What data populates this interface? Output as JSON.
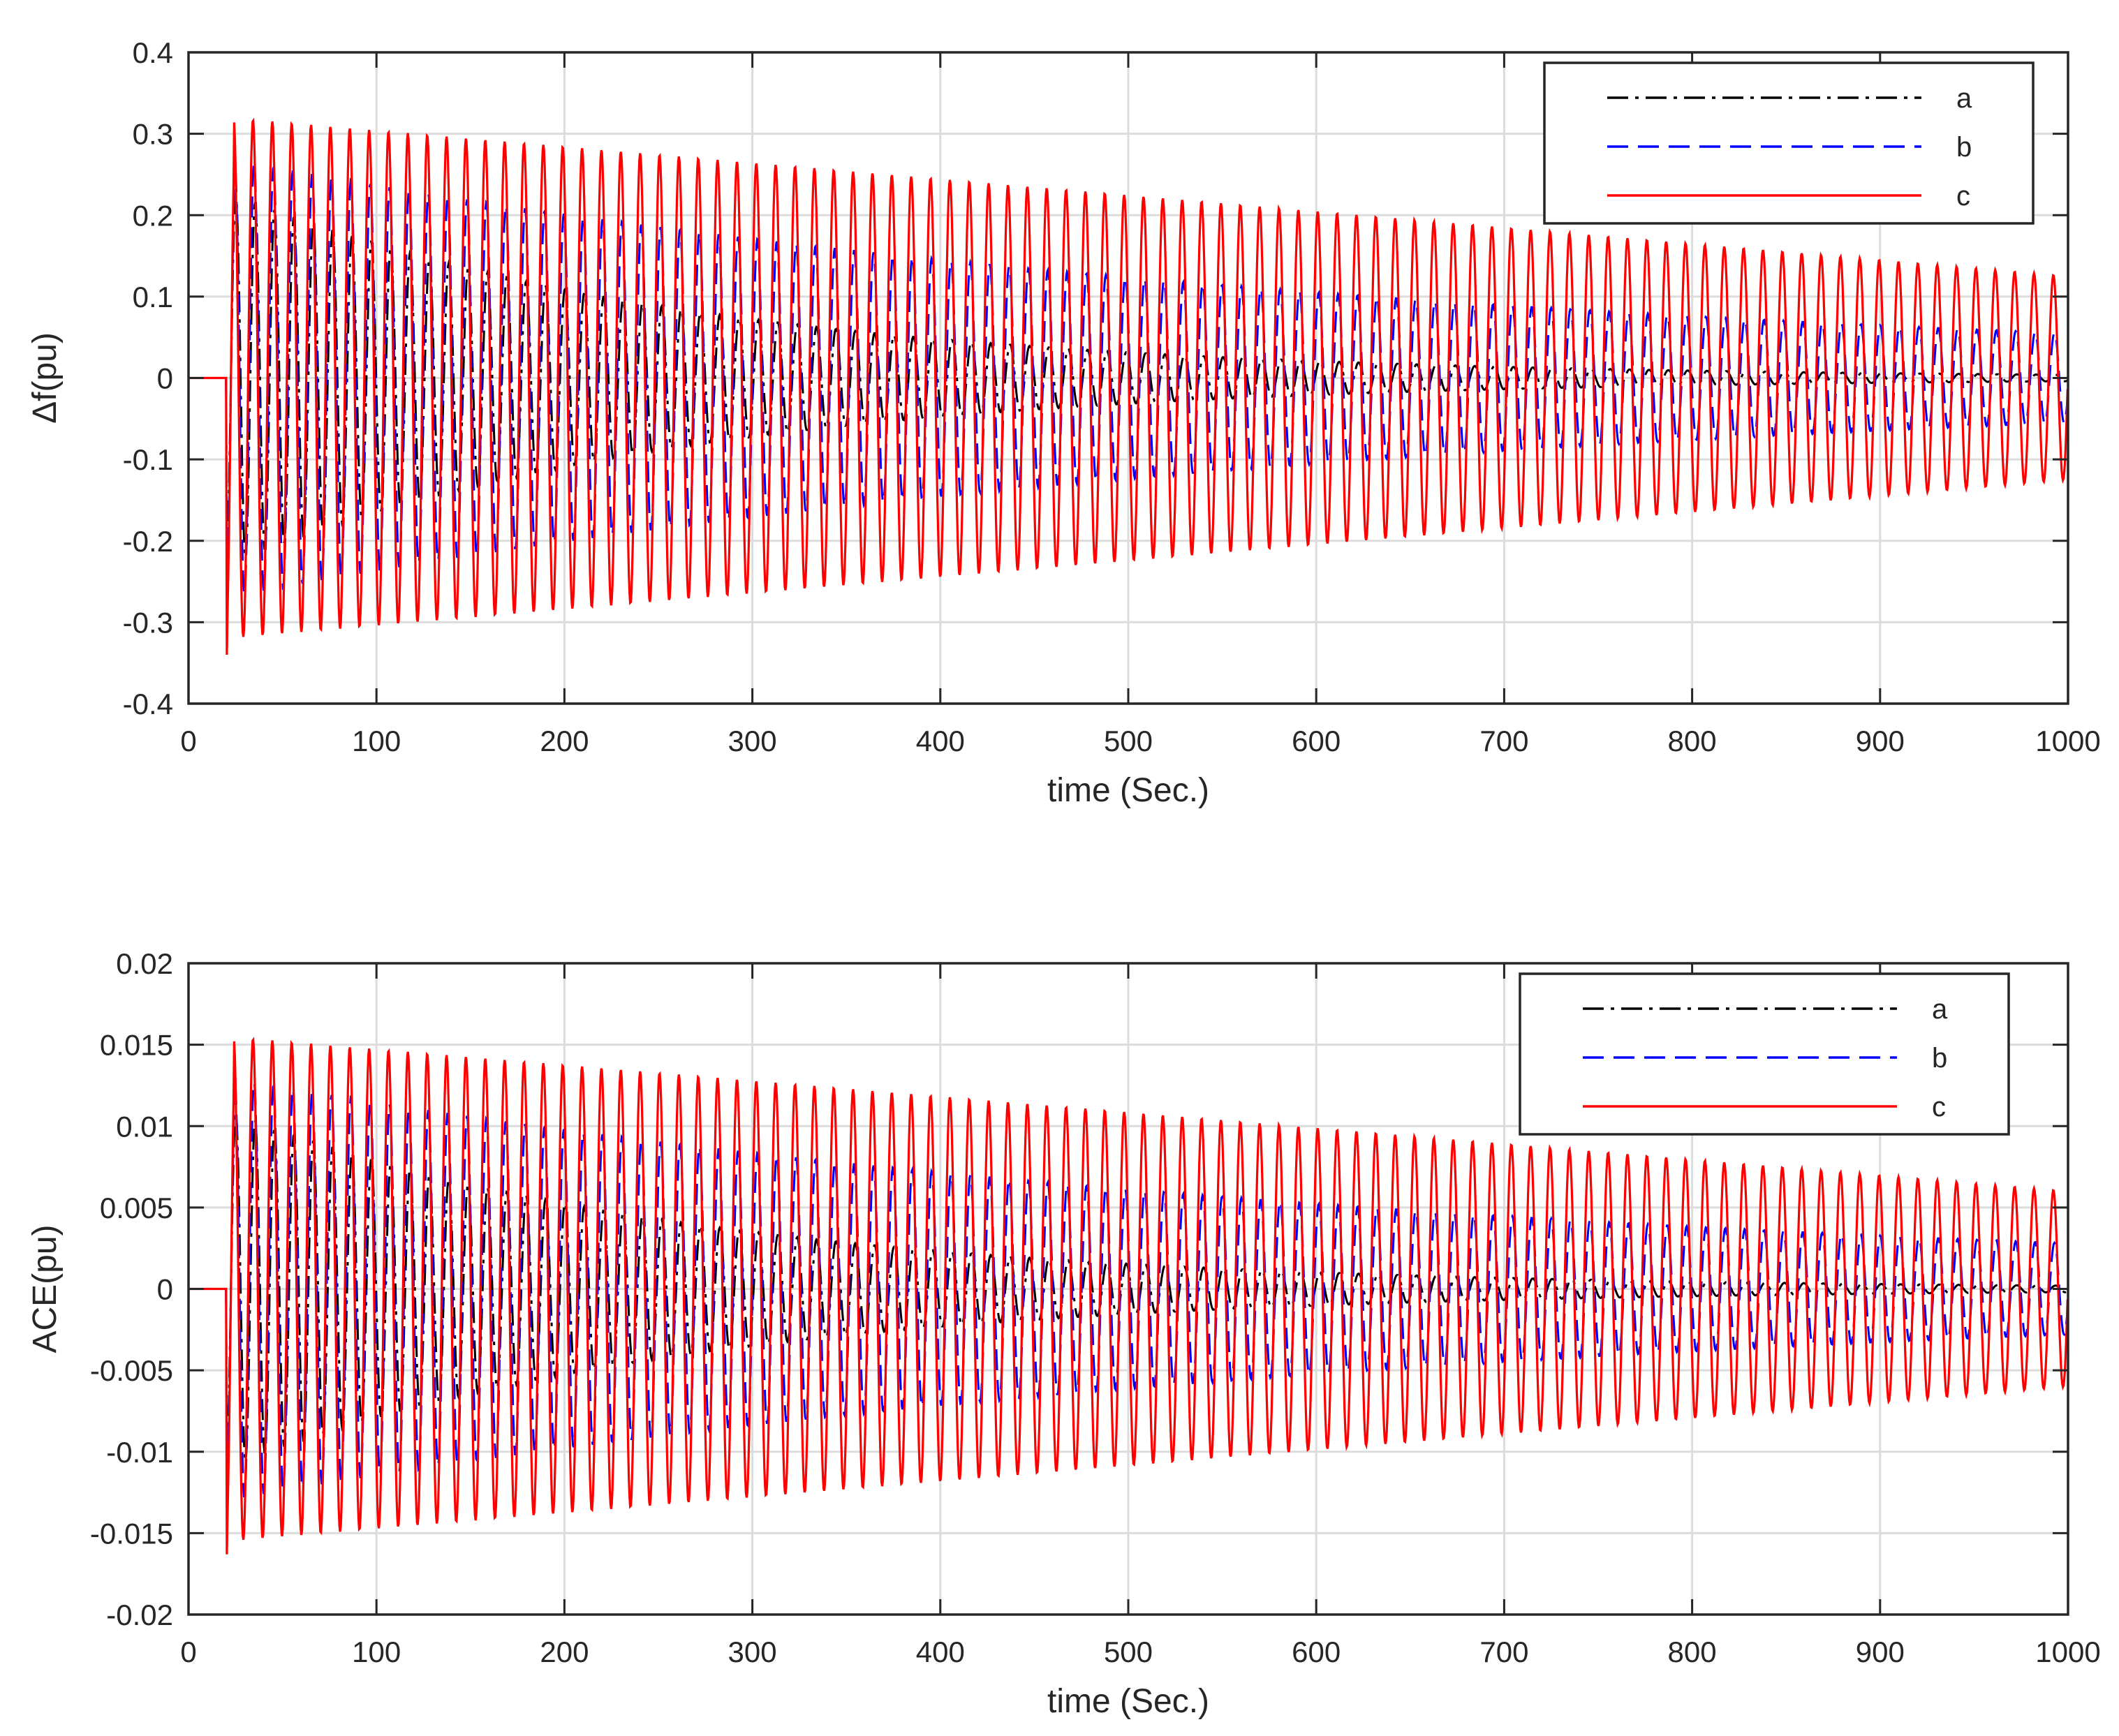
{
  "figure": {
    "legend_position": "top-right"
  },
  "chart_data": [
    {
      "type": "line",
      "title": "",
      "xlabel": "time (Sec.)",
      "ylabel": "Δf(pu)",
      "xlim": [
        0,
        1000
      ],
      "ylim": [
        -0.4,
        0.4
      ],
      "xticks": [
        0,
        100,
        200,
        300,
        400,
        500,
        600,
        700,
        800,
        900,
        1000
      ],
      "xtick_labels": [
        "0",
        "100",
        "200",
        "300",
        "400",
        "500",
        "600",
        "700",
        "800",
        "900",
        "1000"
      ],
      "yticks": [
        -0.4,
        -0.3,
        -0.2,
        -0.1,
        0,
        0.1,
        0.2,
        0.3,
        0.4
      ],
      "ytick_labels": [
        "-0.4",
        "-0.3",
        "-0.2",
        "-0.1",
        "0",
        "0.1",
        "0.2",
        "0.3",
        "0.4"
      ],
      "grid": true,
      "disturbance_time": 20,
      "oscillation_period": 10.3,
      "series": [
        {
          "name": "a",
          "color": "#000000",
          "style": "dashdot",
          "amplitude_start": 0.23,
          "amplitude_end": 0.004,
          "decay": "exponential",
          "initial_dip": -0.23
        },
        {
          "name": "b",
          "color": "#0000ff",
          "style": "dashed",
          "amplitude_start": 0.27,
          "amplitude_end": 0.055,
          "decay": "exponential",
          "initial_dip": -0.27
        },
        {
          "name": "c",
          "color": "#ff0000",
          "style": "solid",
          "amplitude_start": 0.32,
          "amplitude_end": 0.125,
          "decay": "linear",
          "initial_dip": -0.34
        }
      ]
    },
    {
      "type": "line",
      "title": "",
      "xlabel": "time (Sec.)",
      "ylabel": "ACE(pu)",
      "xlim": [
        0,
        1000
      ],
      "ylim": [
        -0.02,
        0.02
      ],
      "xticks": [
        0,
        100,
        200,
        300,
        400,
        500,
        600,
        700,
        800,
        900,
        1000
      ],
      "xtick_labels": [
        "0",
        "100",
        "200",
        "300",
        "400",
        "500",
        "600",
        "700",
        "800",
        "900",
        "1000"
      ],
      "yticks": [
        -0.02,
        -0.015,
        -0.01,
        -0.005,
        0,
        0.005,
        0.01,
        0.015,
        0.02
      ],
      "ytick_labels": [
        "-0.02",
        "-0.015",
        "-0.01",
        "-0.005",
        "0",
        "0.005",
        "0.01",
        "0.015",
        "0.02"
      ],
      "grid": true,
      "disturbance_time": 20,
      "oscillation_period": 10.3,
      "series": [
        {
          "name": "a",
          "color": "#000000",
          "style": "dashdot",
          "amplitude_start": 0.011,
          "amplitude_end": 0.0002,
          "decay": "exponential",
          "initial_dip": -0.011
        },
        {
          "name": "b",
          "color": "#0000ff",
          "style": "dashed",
          "amplitude_start": 0.013,
          "amplitude_end": 0.0028,
          "decay": "exponential",
          "initial_dip": -0.013
        },
        {
          "name": "c",
          "color": "#ff0000",
          "style": "solid",
          "amplitude_start": 0.0155,
          "amplitude_end": 0.006,
          "decay": "linear",
          "initial_dip": -0.0163
        }
      ]
    }
  ]
}
